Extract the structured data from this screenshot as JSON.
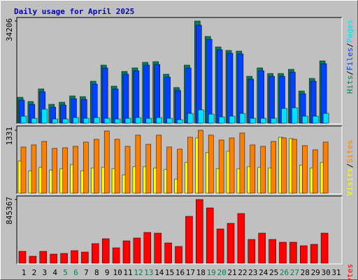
{
  "chart_data": {
    "type": "bar",
    "title": "Daily usage for April 2025",
    "categories": [
      "1",
      "2",
      "3",
      "4",
      "5",
      "6",
      "7",
      "8",
      "9",
      "10",
      "11",
      "12",
      "13",
      "14",
      "15",
      "16",
      "17",
      "18",
      "19",
      "20",
      "21",
      "22",
      "23",
      "24",
      "25",
      "26",
      "27",
      "28",
      "29",
      "30",
      "31"
    ],
    "category_colors": [
      "#000000",
      "#000000",
      "#000000",
      "#000000",
      "#00805c",
      "#00805c",
      "#000000",
      "#000000",
      "#000000",
      "#000000",
      "#000000",
      "#00805c",
      "#00805c",
      "#000000",
      "#000000",
      "#000000",
      "#000000",
      "#000000",
      "#00805c",
      "#00805c",
      "#000000",
      "#000000",
      "#000000",
      "#000000",
      "#000000",
      "#00805c",
      "#00805c",
      "#000000",
      "#000000",
      "#000000",
      "#000000"
    ],
    "legend_separator": "/",
    "panels": [
      {
        "ylim": [
          0,
          34206
        ],
        "yticks": [
          34206
        ],
        "series": [
          {
            "name": "Hits",
            "color": "#00805c",
            "values": [
              8669,
              7263,
              11481,
              6326,
              7029,
              9138,
              8903,
              14058,
              19447,
              12418,
              17338,
              18510,
              20384,
              20618,
              16401,
              11949,
              19447,
              34206,
              29053,
              25538,
              24367,
              24133,
              15698,
              18510,
              16635,
              16635,
              18041,
              10778,
              14995,
              20853,
              null
            ]
          },
          {
            "name": "Files",
            "color": "#0040ff",
            "values": [
              7729,
              6323,
              10541,
              5386,
              6089,
              8198,
              7963,
              13118,
              18507,
              11478,
              16398,
              17570,
              19444,
              19678,
              15461,
              11009,
              18507,
              32800,
              28113,
              24598,
              23427,
              23193,
              14758,
              17570,
              15695,
              15695,
              17101,
              9838,
              14055,
              19913,
              null
            ]
          },
          {
            "name": "Pages",
            "color": "#00e0ff",
            "values": [
              2343,
              1640,
              4686,
              1406,
              1406,
              1874,
              1640,
              1874,
              1640,
              1406,
              1640,
              1874,
              1640,
              1874,
              1640,
              1171,
              3280,
              4452,
              3046,
              2109,
              2343,
              3280,
              1640,
              1640,
              1640,
              4920,
              5154,
              2343,
              2343,
              3280,
              null
            ]
          }
        ]
      },
      {
        "ylim": [
          0,
          1331
        ],
        "yticks": [
          1331
        ],
        "series": [
          {
            "name": "Visits",
            "color": "#ffff00",
            "values": [
              680,
              473,
              547,
              488,
              518,
              606,
              473,
              532,
              547,
              518,
              385,
              562,
              562,
              532,
              503,
              296,
              651,
              1168,
              858,
              518,
              887,
              518,
              562,
              547,
              532,
              1183,
              1154,
              592,
              532,
              651,
              null
            ]
          },
          {
            "name": "Sites",
            "color": "#ff8000",
            "values": [
              976,
              1021,
              1094,
              947,
              961,
              991,
              1080,
              1139,
              1316,
              1139,
              991,
              1228,
              1035,
              1228,
              976,
              932,
              1183,
              1331,
              1228,
              1124,
              1168,
              1272,
              1021,
              991,
              1094,
              1168,
              1139,
              1006,
              917,
              1080,
              null
            ]
          }
        ]
      },
      {
        "ylim": [
          0,
          845367
        ],
        "yticks": [
          845367
        ],
        "series": [
          {
            "name": "KBytes",
            "color": "#ff0000",
            "values": [
              157930,
              92900,
              157930,
              120770,
              130060,
              167220,
              148640,
              260120,
              325150,
              204380,
              297280,
              334440,
              408760,
              399470,
              269410,
              222960,
              622430,
              845367,
              733910,
              455210,
              529530,
              659590,
              315860,
              399470,
              315860,
              278700,
              278700,
              232250,
              250830,
              399470,
              null
            ]
          }
        ]
      }
    ]
  }
}
